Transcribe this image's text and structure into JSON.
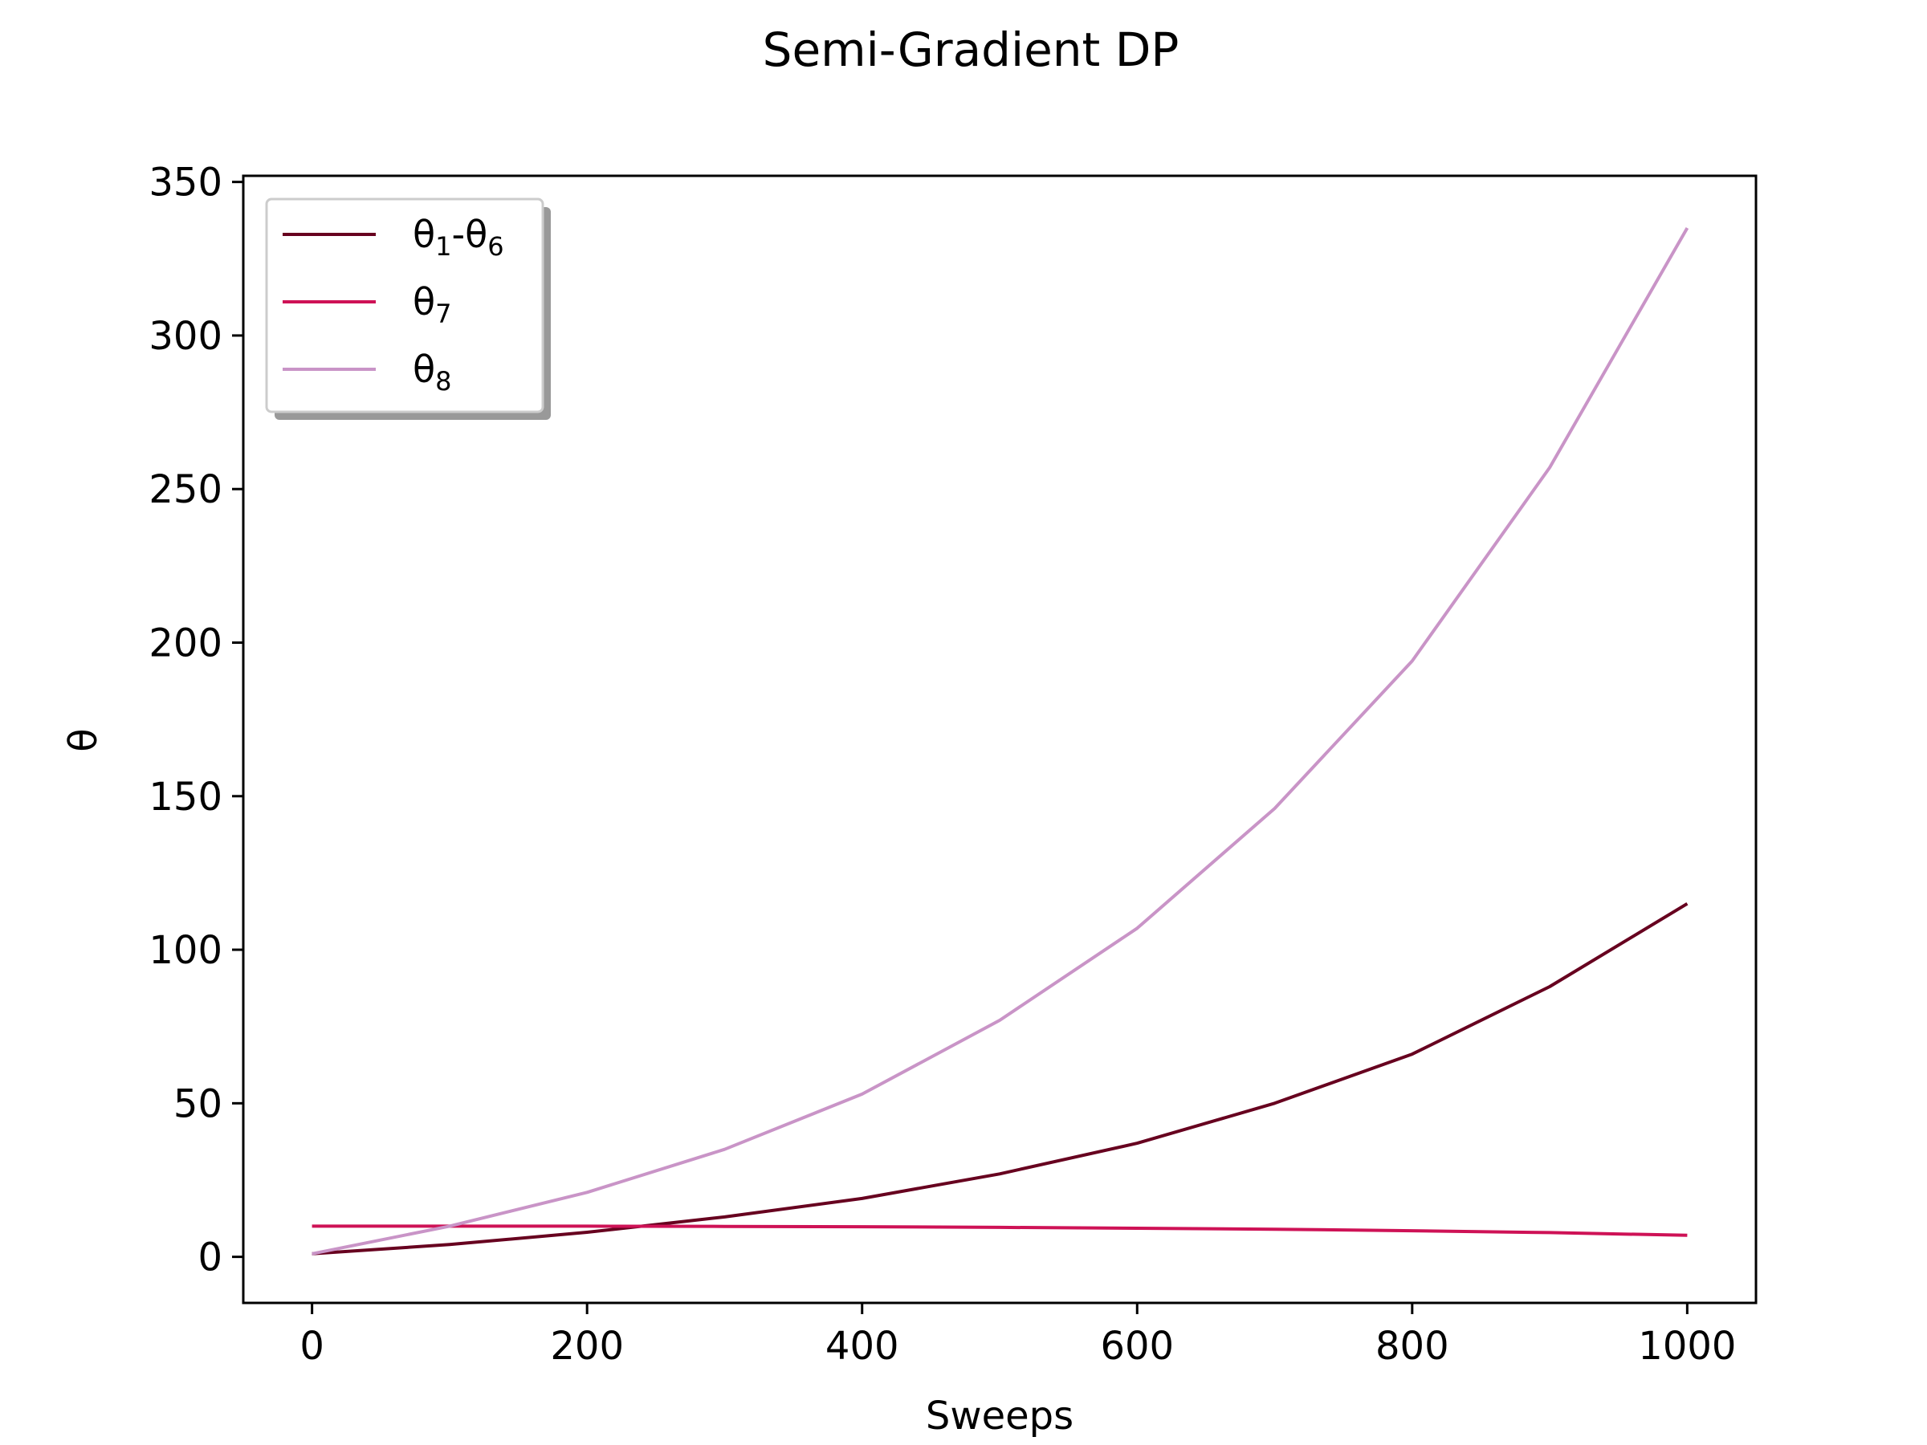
{
  "chart_data": {
    "type": "line",
    "title": "Semi-Gradient DP",
    "xlabel": "Sweeps",
    "ylabel": "θ",
    "xlim": [
      -50,
      1050
    ],
    "ylim": [
      -15,
      352
    ],
    "xticks": [
      0,
      200,
      400,
      600,
      800,
      1000
    ],
    "yticks": [
      0,
      50,
      100,
      150,
      200,
      250,
      300,
      350
    ],
    "grid": false,
    "legend_position": "top-left",
    "series": [
      {
        "name": "θ1-θ6",
        "legend_base": "θ",
        "legend_sub1": "1",
        "legend_mid": "-θ",
        "legend_sub2": "6",
        "color": "#67001f",
        "x": [
          0,
          100,
          200,
          300,
          400,
          500,
          600,
          700,
          800,
          900,
          1000
        ],
        "values": [
          1,
          4,
          8,
          13,
          19,
          27,
          37,
          50,
          66,
          88,
          115
        ]
      },
      {
        "name": "θ7",
        "legend_base": "θ",
        "legend_sub1": "7",
        "legend_mid": "",
        "legend_sub2": "",
        "color": "#ce1256",
        "x": [
          0,
          100,
          200,
          300,
          400,
          500,
          600,
          700,
          800,
          900,
          1000
        ],
        "values": [
          10,
          10,
          10,
          9.9,
          9.8,
          9.6,
          9.3,
          9,
          8.5,
          7.9,
          7
        ]
      },
      {
        "name": "θ8",
        "legend_base": "θ",
        "legend_sub1": "8",
        "legend_mid": "",
        "legend_sub2": "",
        "color": "#c994c7",
        "x": [
          0,
          100,
          200,
          300,
          400,
          500,
          600,
          700,
          800,
          900,
          1000
        ],
        "values": [
          1,
          10,
          21,
          35,
          53,
          77,
          107,
          146,
          194,
          257,
          335
        ]
      }
    ]
  }
}
